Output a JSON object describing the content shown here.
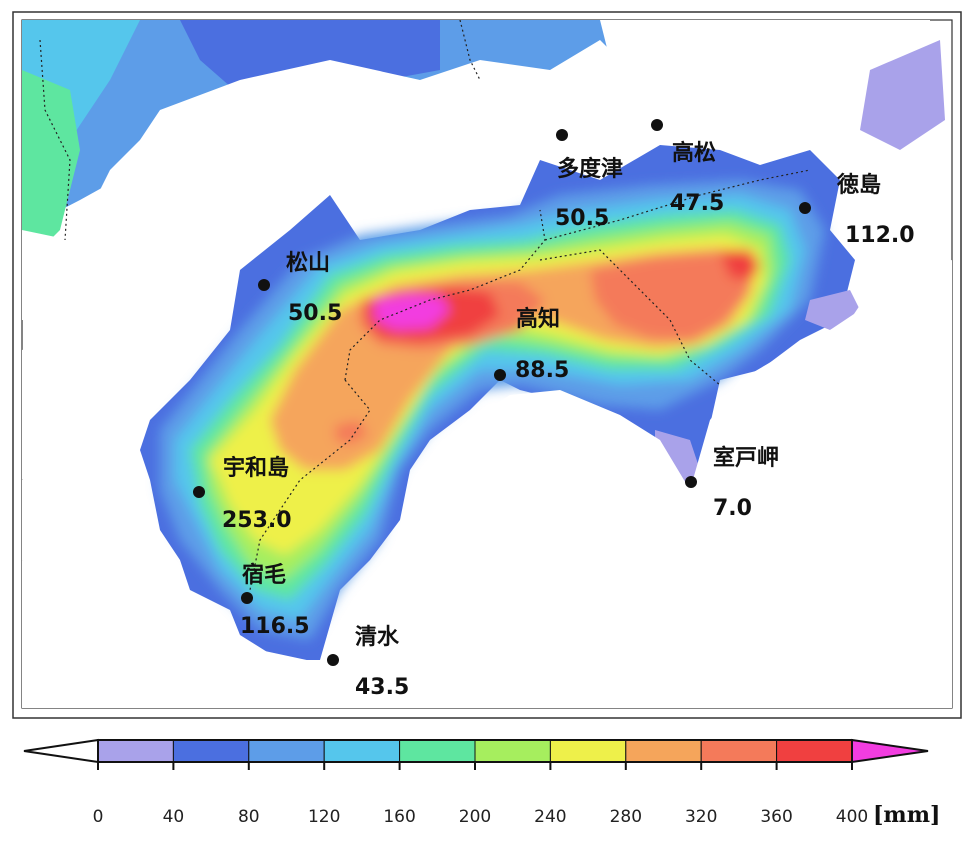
{
  "colorbar": {
    "ticks": [
      "0",
      "40",
      "80",
      "120",
      "160",
      "200",
      "240",
      "280",
      "320",
      "360",
      "400"
    ],
    "unit": "[mm]",
    "colors": [
      "#a9a2ea",
      "#4b6fe0",
      "#5d9de8",
      "#55c6ec",
      "#5ee6a0",
      "#a6ee5e",
      "#eef04a",
      "#f5a55b",
      "#f47a5a",
      "#f04040"
    ],
    "under_color": "#ffffff",
    "over_color": "#f23de0"
  },
  "stations": [
    {
      "name": "松山",
      "value": "50.5"
    },
    {
      "name": "多度津",
      "value": "50.5"
    },
    {
      "name": "高松",
      "value": "47.5"
    },
    {
      "name": "徳島",
      "value": "112.0"
    },
    {
      "name": "高知",
      "value": "88.5"
    },
    {
      "name": "室戸岬",
      "value": "7.0"
    },
    {
      "name": "宇和島",
      "value": "253.0"
    },
    {
      "name": "宿毛",
      "value": "116.5"
    },
    {
      "name": "清水",
      "value": "43.5"
    }
  ]
}
